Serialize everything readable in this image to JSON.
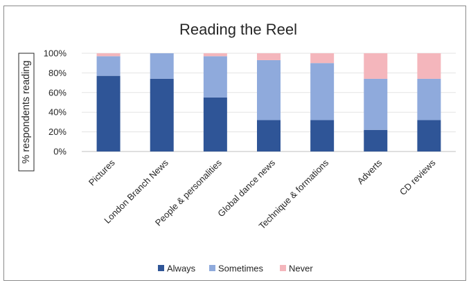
{
  "chart_data": {
    "type": "bar",
    "stacked": true,
    "title": "Reading the Reel",
    "xlabel": "",
    "ylabel": "% respondents reading",
    "ylim": [
      0,
      100
    ],
    "yticks": [
      "0%",
      "20%",
      "40%",
      "60%",
      "80%",
      "100%"
    ],
    "grid": true,
    "legend_position": "bottom",
    "categories": [
      "Pictures",
      "London Branch News",
      "People & personalities",
      "Global dance news",
      "Technique & formations",
      "Adverts",
      "CD reviews"
    ],
    "series": [
      {
        "name": "Always",
        "color": "#2f5597",
        "values": [
          77,
          74,
          55,
          32,
          32,
          22,
          32
        ]
      },
      {
        "name": "Sometimes",
        "color": "#8faadc",
        "values": [
          20,
          26,
          42,
          61,
          58,
          52,
          42
        ]
      },
      {
        "name": "Never",
        "color": "#f4b6bc",
        "values": [
          3,
          0,
          3,
          7,
          10,
          26,
          26
        ]
      }
    ]
  }
}
